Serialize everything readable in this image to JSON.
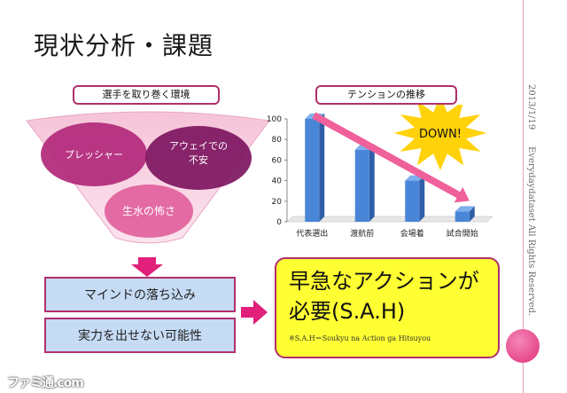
{
  "slide": {
    "title": "現状分析・課題",
    "sidebar_date": "2013/1/19",
    "sidebar_rights": "Everydaydataset All Rights Reserved."
  },
  "left": {
    "header": "選手を取り巻く環境",
    "circles": [
      "プレッシャー",
      "アウェイでの\n不安",
      "生水の怖さ"
    ],
    "box1": "マインドの落ち込み",
    "box2": "実力を出せない可能性"
  },
  "chart_header": "テンションの推移",
  "chart_data": {
    "type": "bar",
    "categories": [
      "代表選出",
      "渡航前",
      "会場着",
      "試合開始"
    ],
    "values": [
      100,
      70,
      40,
      10
    ],
    "ylim": [
      0,
      100
    ],
    "yticks": [
      0,
      20,
      40,
      60,
      80,
      100
    ],
    "annotation": "DOWN!",
    "colors": {
      "bar": "#4a86d8",
      "arrow": "#f0609a",
      "burst": "#ffd20a"
    }
  },
  "solution": {
    "line1": "早急なアクションが",
    "line2": "必要(S.A.H)",
    "note": "※S.A.H＝Soukyu na Action ga Hitsuyou"
  },
  "watermark": "ファミ通.com"
}
